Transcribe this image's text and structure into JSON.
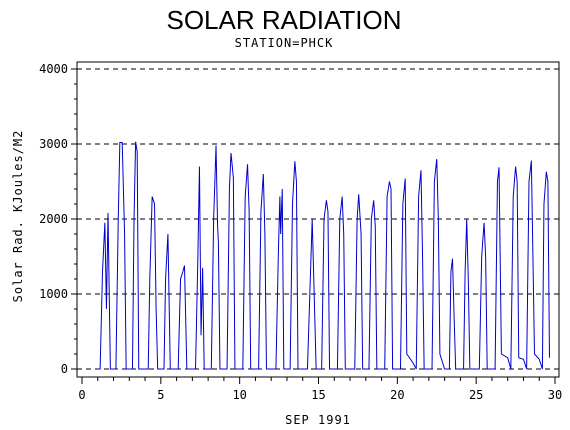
{
  "chart_data": {
    "type": "line",
    "title": "SOLAR RADIATION",
    "subtitle": "STATION=PHCK",
    "xlabel": "SEP 1991",
    "ylabel": "Solar Rad. KJoules/M2",
    "xlim": [
      0,
      30
    ],
    "ylim": [
      0,
      4000
    ],
    "x_ticks": [
      0,
      5,
      10,
      15,
      20,
      25,
      30
    ],
    "y_ticks": [
      0,
      1000,
      2000,
      3000,
      4000
    ],
    "grid": "horizontal-dashed",
    "line_color": "#0000cc",
    "series": [
      {
        "values": [
          [
            1.0,
            0
          ],
          [
            1.15,
            0
          ],
          [
            1.3,
            1300
          ],
          [
            1.45,
            1950
          ],
          [
            1.55,
            800
          ],
          [
            1.65,
            2080
          ],
          [
            1.8,
            0
          ],
          [
            2.15,
            0
          ],
          [
            2.3,
            2000
          ],
          [
            2.4,
            3020
          ],
          [
            2.55,
            3020
          ],
          [
            2.7,
            1800
          ],
          [
            2.8,
            0
          ],
          [
            3.2,
            0
          ],
          [
            3.3,
            2000
          ],
          [
            3.4,
            3030
          ],
          [
            3.5,
            2900
          ],
          [
            3.6,
            0
          ],
          [
            4.2,
            0
          ],
          [
            4.3,
            1200
          ],
          [
            4.45,
            2300
          ],
          [
            4.6,
            2200
          ],
          [
            4.7,
            800
          ],
          [
            4.8,
            0
          ],
          [
            5.2,
            0
          ],
          [
            5.3,
            1200
          ],
          [
            5.45,
            1800
          ],
          [
            5.6,
            0
          ],
          [
            6.1,
            0
          ],
          [
            6.25,
            1200
          ],
          [
            6.4,
            1300
          ],
          [
            6.5,
            1380
          ],
          [
            6.65,
            0
          ],
          [
            7.2,
            0
          ],
          [
            7.35,
            1500
          ],
          [
            7.45,
            2700
          ],
          [
            7.55,
            450
          ],
          [
            7.65,
            1350
          ],
          [
            7.75,
            0
          ],
          [
            8.2,
            0
          ],
          [
            8.35,
            2000
          ],
          [
            8.5,
            2980
          ],
          [
            8.6,
            1900
          ],
          [
            8.65,
            1700
          ],
          [
            8.75,
            0
          ],
          [
            9.2,
            0
          ],
          [
            9.35,
            2400
          ],
          [
            9.45,
            2880
          ],
          [
            9.6,
            2550
          ],
          [
            9.7,
            0
          ],
          [
            10.2,
            0
          ],
          [
            10.35,
            2300
          ],
          [
            10.5,
            2730
          ],
          [
            10.6,
            2100
          ],
          [
            10.7,
            0
          ],
          [
            11.2,
            0
          ],
          [
            11.35,
            2100
          ],
          [
            11.5,
            2600
          ],
          [
            11.6,
            1800
          ],
          [
            11.7,
            0
          ],
          [
            12.3,
            0
          ],
          [
            12.45,
            1500
          ],
          [
            12.55,
            2300
          ],
          [
            12.6,
            1800
          ],
          [
            12.7,
            2400
          ],
          [
            12.8,
            0
          ],
          [
            13.2,
            0
          ],
          [
            13.35,
            2200
          ],
          [
            13.5,
            2770
          ],
          [
            13.6,
            2500
          ],
          [
            13.7,
            0
          ],
          [
            14.3,
            0
          ],
          [
            14.45,
            1000
          ],
          [
            14.6,
            2000
          ],
          [
            14.75,
            800
          ],
          [
            14.85,
            0
          ],
          [
            15.2,
            0
          ],
          [
            15.35,
            2000
          ],
          [
            15.5,
            2250
          ],
          [
            15.6,
            2100
          ],
          [
            15.7,
            0
          ],
          [
            16.2,
            0
          ],
          [
            16.35,
            2000
          ],
          [
            16.5,
            2300
          ],
          [
            16.6,
            1800
          ],
          [
            16.7,
            0
          ],
          [
            17.3,
            0
          ],
          [
            17.45,
            2000
          ],
          [
            17.55,
            2330
          ],
          [
            17.7,
            1800
          ],
          [
            17.8,
            0
          ],
          [
            18.2,
            0
          ],
          [
            18.35,
            2000
          ],
          [
            18.5,
            2250
          ],
          [
            18.6,
            1900
          ],
          [
            18.7,
            0
          ],
          [
            19.2,
            0
          ],
          [
            19.35,
            2300
          ],
          [
            19.5,
            2500
          ],
          [
            19.6,
            2400
          ],
          [
            19.7,
            0
          ],
          [
            20.2,
            0
          ],
          [
            20.35,
            2200
          ],
          [
            20.5,
            2540
          ],
          [
            20.6,
            200
          ],
          [
            21.0,
            80
          ],
          [
            21.2,
            0
          ],
          [
            21.35,
            2300
          ],
          [
            21.5,
            2650
          ],
          [
            21.6,
            1500
          ],
          [
            21.7,
            0
          ],
          [
            22.2,
            0
          ],
          [
            22.35,
            2500
          ],
          [
            22.5,
            2800
          ],
          [
            22.6,
            2000
          ],
          [
            22.7,
            200
          ],
          [
            23.0,
            0
          ],
          [
            23.3,
            0
          ],
          [
            23.4,
            1300
          ],
          [
            23.5,
            1470
          ],
          [
            23.6,
            700
          ],
          [
            23.7,
            0
          ],
          [
            24.2,
            0
          ],
          [
            24.3,
            1300
          ],
          [
            24.4,
            2000
          ],
          [
            24.5,
            1200
          ],
          [
            24.6,
            0
          ],
          [
            25.2,
            0
          ],
          [
            25.35,
            1500
          ],
          [
            25.5,
            1950
          ],
          [
            25.6,
            1500
          ],
          [
            25.7,
            0
          ],
          [
            26.2,
            0
          ],
          [
            26.35,
            2500
          ],
          [
            26.45,
            2690
          ],
          [
            26.6,
            200
          ],
          [
            27.0,
            150
          ],
          [
            27.2,
            0
          ],
          [
            27.35,
            2300
          ],
          [
            27.5,
            2700
          ],
          [
            27.6,
            2500
          ],
          [
            27.7,
            150
          ],
          [
            28.0,
            130
          ],
          [
            28.2,
            0
          ],
          [
            28.35,
            2500
          ],
          [
            28.5,
            2780
          ],
          [
            28.6,
            1500
          ],
          [
            28.7,
            200
          ],
          [
            29.0,
            130
          ],
          [
            29.2,
            0
          ],
          [
            29.3,
            2200
          ],
          [
            29.45,
            2630
          ],
          [
            29.55,
            2500
          ],
          [
            29.65,
            150
          ]
        ]
      }
    ]
  }
}
